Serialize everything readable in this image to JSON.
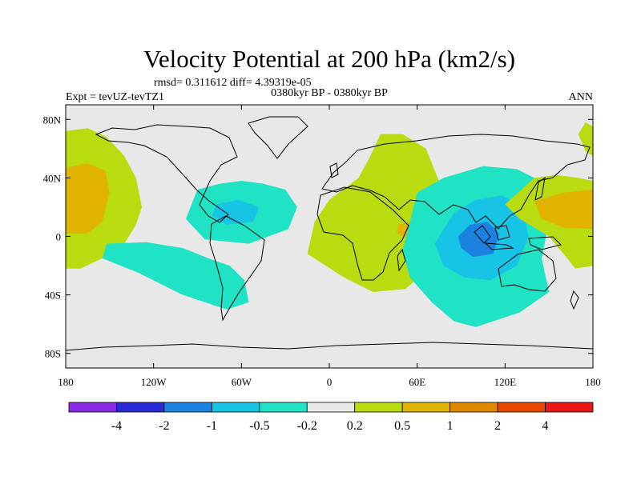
{
  "chart_data": {
    "type": "contour-map",
    "title": "Velocity Potential at 200 hPa (km2/s)",
    "stats_line": "rmsd= 0.311612 diff= 4.39319e-05",
    "period": "0380kyr BP - 0380kyr BP",
    "experiment": "Expt = tevUZ-tevTZ1",
    "season": "ANN",
    "lon_range": [
      -180,
      180
    ],
    "lat_range": [
      -90,
      90
    ],
    "x_ticks": [
      {
        "value": -180,
        "label": "180"
      },
      {
        "value": -120,
        "label": "120W"
      },
      {
        "value": -60,
        "label": "60W"
      },
      {
        "value": 0,
        "label": "0"
      },
      {
        "value": 60,
        "label": "60E"
      },
      {
        "value": 120,
        "label": "120E"
      },
      {
        "value": 180,
        "label": "180"
      }
    ],
    "y_ticks": [
      {
        "value": 80,
        "label": "80N"
      },
      {
        "value": 40,
        "label": "40N"
      },
      {
        "value": 0,
        "label": "0"
      },
      {
        "value": -40,
        "label": "40S"
      },
      {
        "value": -80,
        "label": "80S"
      }
    ],
    "colorbar": {
      "levels": [
        "-4",
        "-2",
        "-1",
        "-0.5",
        "-0.2",
        "0.2",
        "0.5",
        "1",
        "2",
        "4"
      ],
      "colors": [
        "#8a2be2",
        "#2a2ad4",
        "#1c82e2",
        "#18c4e6",
        "#20e2c4",
        "#e8e8e8",
        "#b8dc10",
        "#e0b400",
        "#e08800",
        "#e84800",
        "#e81818"
      ]
    },
    "regions": [
      {
        "name": "n-pacific-positive",
        "level": "0.2",
        "color": "#b8dc10",
        "lonlat": [
          [
            -180,
            72
          ],
          [
            -165,
            74
          ],
          [
            -152,
            68
          ],
          [
            -140,
            55
          ],
          [
            -132,
            40
          ],
          [
            -128,
            20
          ],
          [
            -132,
            8
          ],
          [
            -140,
            -5
          ],
          [
            -155,
            -15
          ],
          [
            -170,
            -22
          ],
          [
            -180,
            -22
          ]
        ]
      },
      {
        "name": "n-pacific-positive-core",
        "level": "0.5",
        "color": "#e0b400",
        "lonlat": [
          [
            -180,
            47
          ],
          [
            -165,
            50
          ],
          [
            -153,
            45
          ],
          [
            -150,
            30
          ],
          [
            -155,
            10
          ],
          [
            -165,
            2
          ],
          [
            -180,
            2
          ]
        ]
      },
      {
        "name": "c-america-negative",
        "level": "-0.2",
        "color": "#20e2c4",
        "lonlat": [
          [
            -90,
            32
          ],
          [
            -75,
            36
          ],
          [
            -60,
            38
          ],
          [
            -45,
            36
          ],
          [
            -30,
            32
          ],
          [
            -22,
            20
          ],
          [
            -28,
            5
          ],
          [
            -55,
            -5
          ],
          [
            -85,
            -2
          ],
          [
            -98,
            12
          ]
        ]
      },
      {
        "name": "s-america-negative",
        "level": "-0.2",
        "color": "#20e2c4",
        "lonlat": [
          [
            -152,
            -5
          ],
          [
            -125,
            -4
          ],
          [
            -100,
            -8
          ],
          [
            -80,
            -16
          ],
          [
            -68,
            -20
          ],
          [
            -58,
            -30
          ],
          [
            -55,
            -45
          ],
          [
            -70,
            -50
          ],
          [
            -100,
            -40
          ],
          [
            -130,
            -25
          ],
          [
            -155,
            -15
          ]
        ]
      },
      {
        "name": "caribbean-core",
        "level": "-0.5",
        "color": "#18c4e6",
        "lonlat": [
          [
            -77,
            22
          ],
          [
            -62,
            25
          ],
          [
            -48,
            20
          ],
          [
            -52,
            10
          ],
          [
            -70,
            8
          ],
          [
            -80,
            14
          ]
        ]
      },
      {
        "name": "africa-positive",
        "level": "0.2",
        "color": "#b8dc10",
        "lonlat": [
          [
            -15,
            -12
          ],
          [
            10,
            -28
          ],
          [
            30,
            -38
          ],
          [
            52,
            -36
          ],
          [
            70,
            -20
          ],
          [
            80,
            5
          ],
          [
            78,
            30
          ],
          [
            66,
            60
          ],
          [
            50,
            70
          ],
          [
            35,
            70
          ],
          [
            28,
            55
          ],
          [
            20,
            40
          ],
          [
            0,
            25
          ],
          [
            -10,
            10
          ]
        ]
      },
      {
        "name": "africa-positive-core",
        "level": "0.5",
        "color": "#e0b400",
        "lonlat": [
          [
            47,
            8
          ],
          [
            55,
            10
          ],
          [
            62,
            5
          ],
          [
            55,
            -2
          ],
          [
            46,
            2
          ]
        ]
      },
      {
        "name": "indo-pacific-negative",
        "level": "-0.2",
        "color": "#20e2c4",
        "lonlat": [
          [
            50,
            -10
          ],
          [
            60,
            30
          ],
          [
            78,
            40
          ],
          [
            105,
            48
          ],
          [
            128,
            46
          ],
          [
            140,
            40
          ],
          [
            145,
            30
          ],
          [
            150,
            10
          ],
          [
            145,
            -15
          ],
          [
            150,
            -38
          ],
          [
            130,
            -52
          ],
          [
            100,
            -62
          ],
          [
            85,
            -58
          ],
          [
            70,
            -45
          ],
          [
            55,
            -28
          ]
        ]
      },
      {
        "name": "indo-pacific-core",
        "level": "-0.5",
        "color": "#18c4e6",
        "lonlat": [
          [
            72,
            -5
          ],
          [
            85,
            16
          ],
          [
            100,
            25
          ],
          [
            118,
            28
          ],
          [
            132,
            20
          ],
          [
            136,
            0
          ],
          [
            128,
            -20
          ],
          [
            110,
            -30
          ],
          [
            92,
            -28
          ],
          [
            78,
            -20
          ]
        ]
      },
      {
        "name": "indonesia-core",
        "level": "-1",
        "color": "#1c82e2",
        "lonlat": [
          [
            88,
            0
          ],
          [
            96,
            8
          ],
          [
            108,
            10
          ],
          [
            116,
            2
          ],
          [
            112,
            -12
          ],
          [
            98,
            -14
          ],
          [
            90,
            -8
          ]
        ]
      },
      {
        "name": "w-pacific-positive",
        "level": "0.2",
        "color": "#b8dc10",
        "lonlat": [
          [
            120,
            22
          ],
          [
            140,
            40
          ],
          [
            155,
            42
          ],
          [
            170,
            40
          ],
          [
            180,
            38
          ],
          [
            180,
            -20
          ],
          [
            168,
            -22
          ],
          [
            160,
            -12
          ],
          [
            150,
            0
          ],
          [
            130,
            12
          ]
        ]
      },
      {
        "name": "w-pacific-positive-core",
        "level": "0.5",
        "color": "#e0b400",
        "lonlat": [
          [
            140,
            24
          ],
          [
            160,
            30
          ],
          [
            180,
            32
          ],
          [
            180,
            5
          ],
          [
            160,
            6
          ],
          [
            145,
            12
          ]
        ]
      },
      {
        "name": "arctic-pacific-positive",
        "level": "0.2",
        "color": "#b8dc10",
        "lonlat": [
          [
            180,
            75
          ],
          [
            175,
            78
          ],
          [
            170,
            70
          ],
          [
            175,
            58
          ],
          [
            180,
            55
          ]
        ]
      }
    ]
  }
}
